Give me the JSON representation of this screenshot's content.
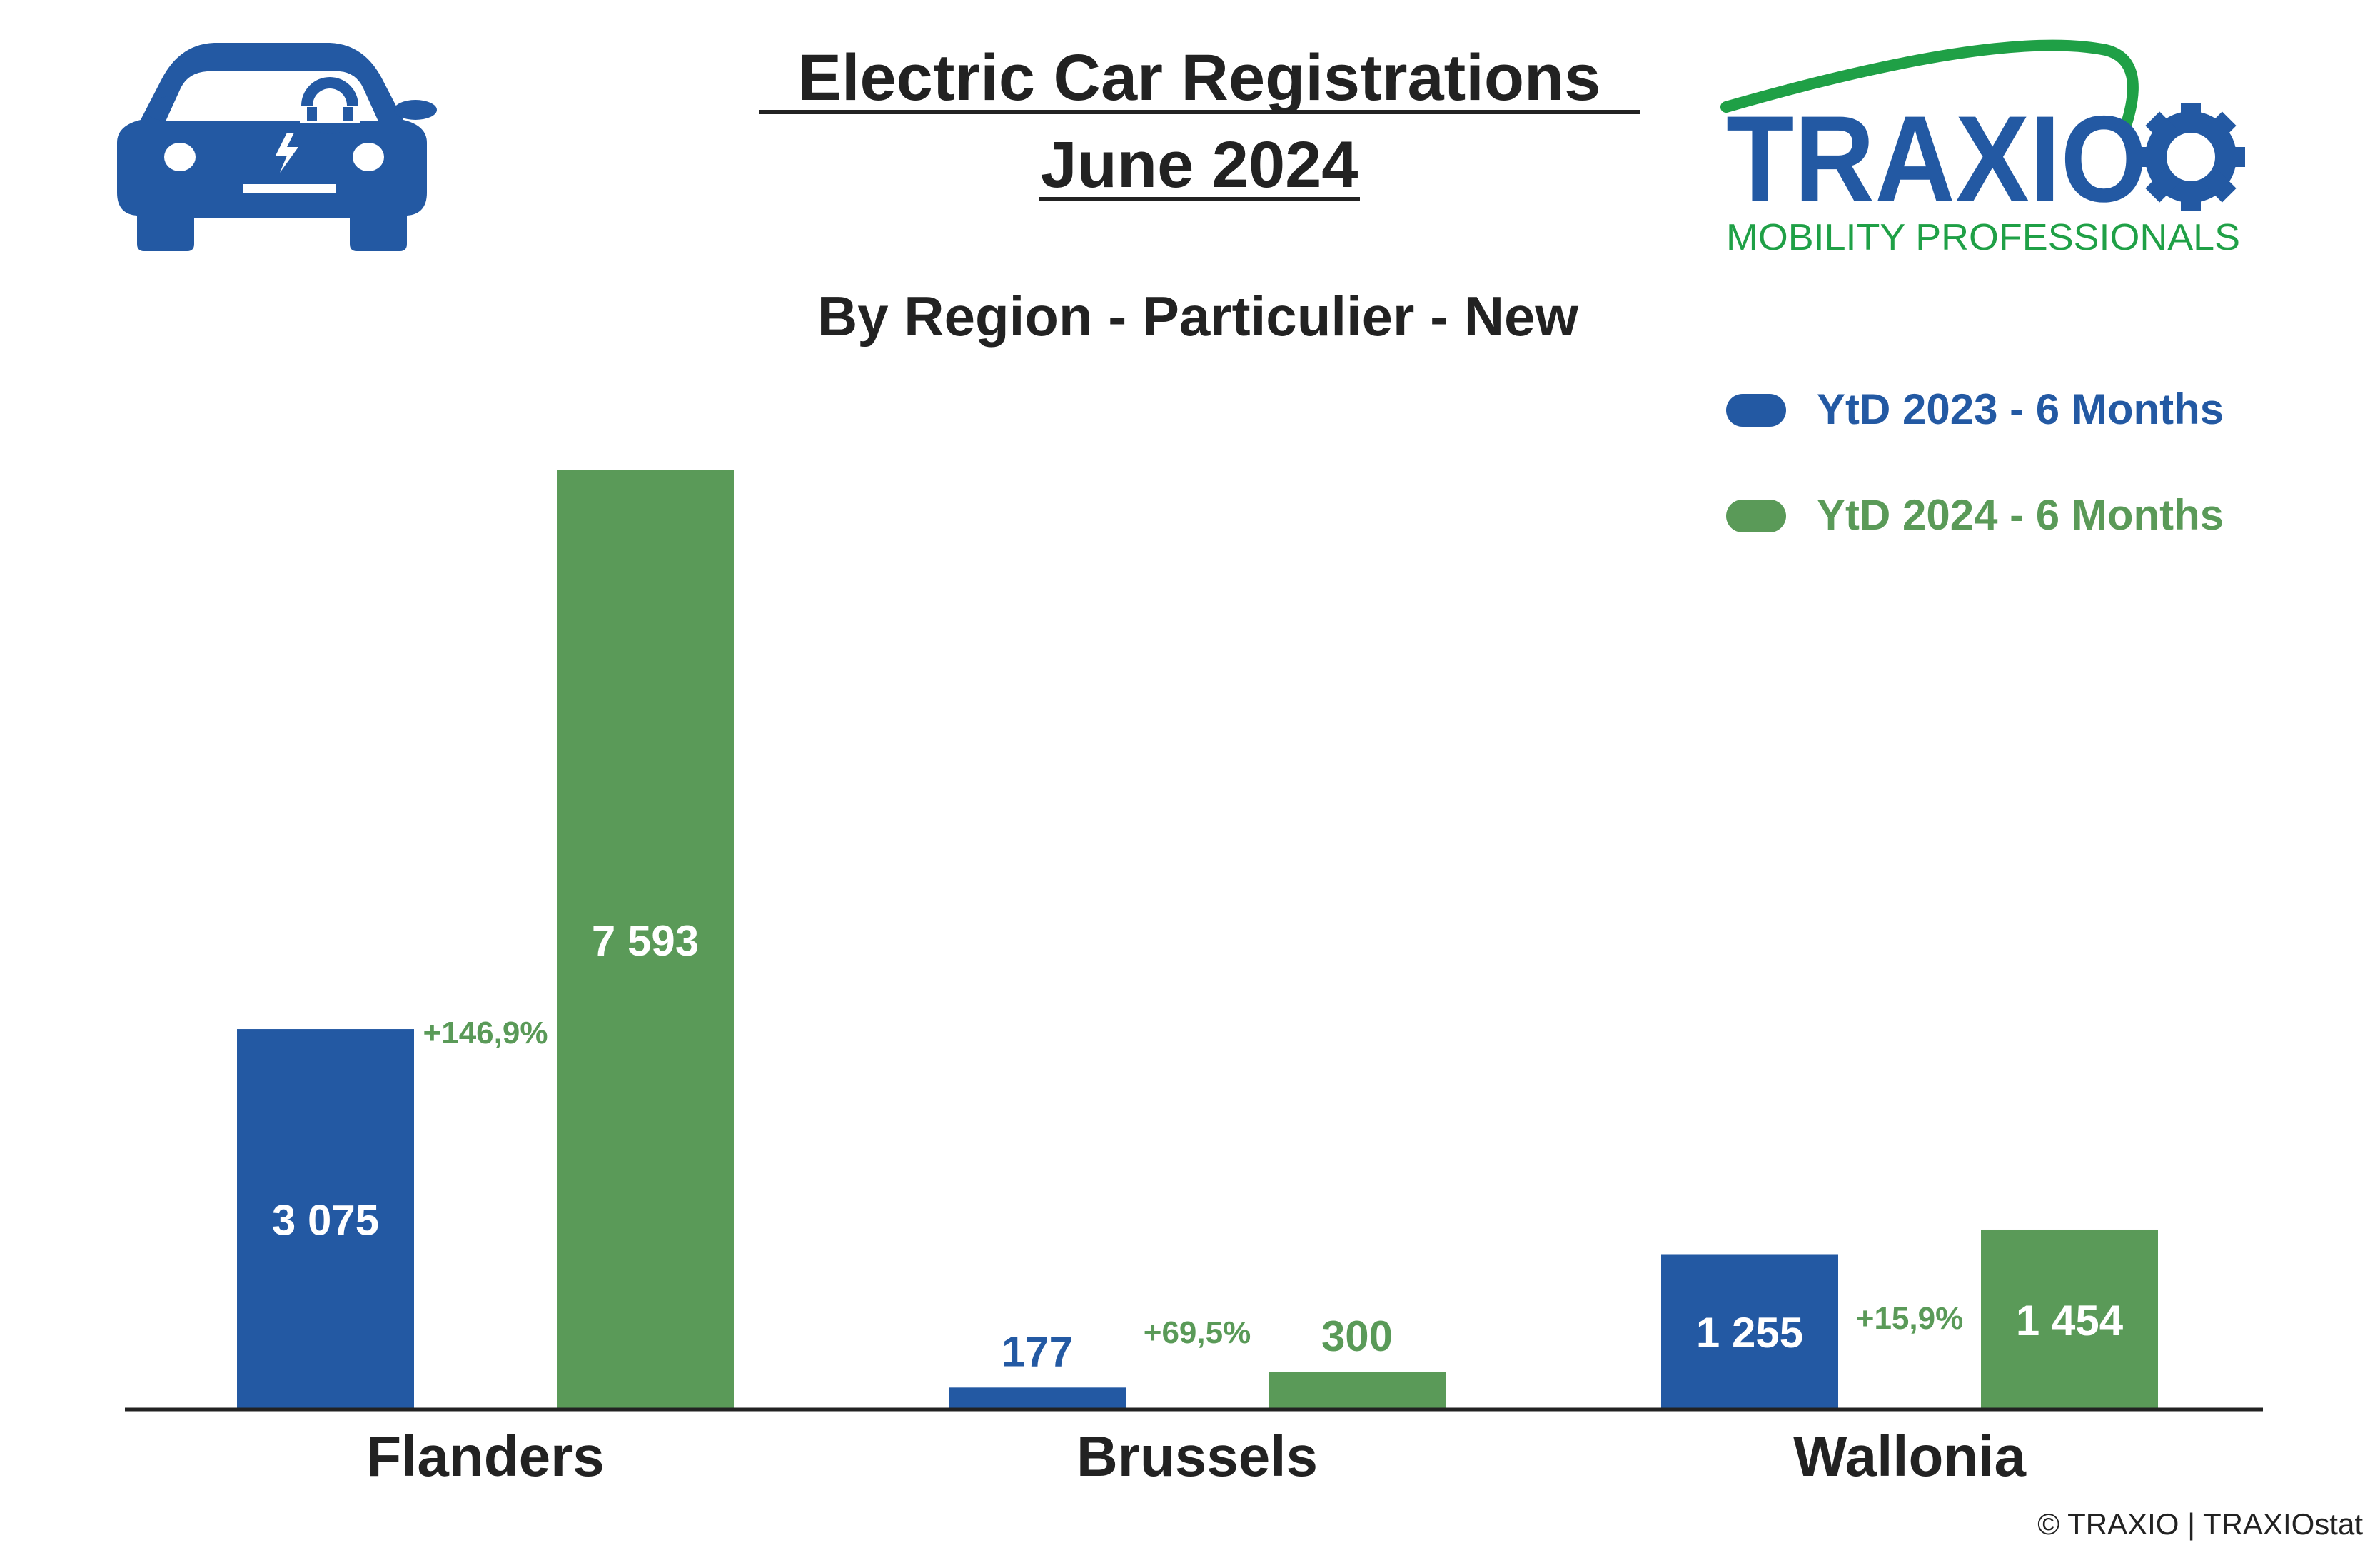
{
  "colors": {
    "series_2023": "#2359a3",
    "series_2024": "#5a9a58",
    "text": "#222222",
    "axis": "#222222",
    "logo_blue": "#2359a3",
    "logo_green": "#1fa046"
  },
  "icons": {
    "car": "electric-car-icon",
    "logo": "traxio-logo"
  },
  "logo": {
    "wordmark": "TRAXIO",
    "tagline": "MOBILITY PROFESSIONALS"
  },
  "chart_data": {
    "type": "bar",
    "title": [
      "Electric Car Registrations",
      "June 2024"
    ],
    "subtitle": "By Region - Particulier - New",
    "categories": [
      "Flanders",
      "Brussels",
      "Wallonia"
    ],
    "series": [
      {
        "name": "YtD 2023 - 6 Months",
        "values": [
          3075,
          177,
          1255
        ],
        "labels": [
          "3 075",
          "177",
          "1 255"
        ]
      },
      {
        "name": "YtD 2024 - 6 Months",
        "values": [
          7593,
          300,
          1454
        ],
        "labels": [
          "7 593",
          "300",
          "1 454"
        ]
      }
    ],
    "changes": [
      "+146,9%",
      "+69,5%",
      "+15,9%"
    ],
    "ylim": [
      0,
      8000
    ],
    "grid": false,
    "legend": "top-right",
    "xlabel": "",
    "ylabel": ""
  },
  "footer": "© TRAXIO | TRAXIOstat"
}
